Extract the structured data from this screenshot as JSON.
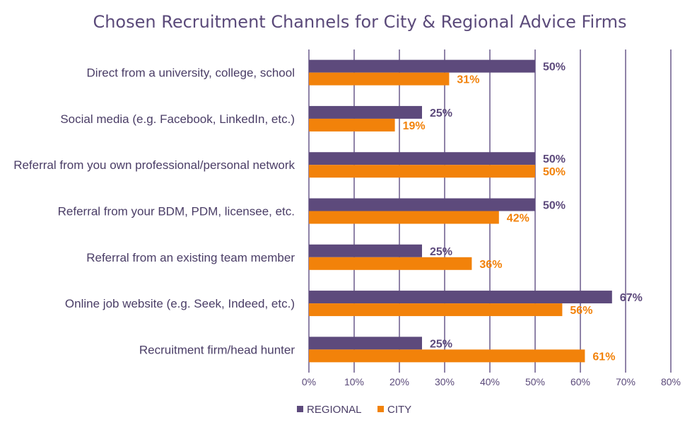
{
  "chart_data": {
    "type": "bar",
    "orientation": "horizontal",
    "title": "Chosen Recruitment Channels for City & Regional Advice Firms",
    "categories": [
      "Direct from a university, college, school",
      "Social media (e.g. Facebook, LinkedIn, etc.)",
      "Referral from you own professional/personal network",
      "Referral from your BDM, PDM, licensee, etc.",
      "Referral from an existing team member",
      "Online job website (e.g. Seek, Indeed, etc.)",
      "Recruitment firm/head hunter"
    ],
    "series": [
      {
        "name": "REGIONAL",
        "color": "#5d4a7c",
        "values": [
          50,
          25,
          50,
          50,
          25,
          67,
          25
        ]
      },
      {
        "name": "CITY",
        "color": "#f2820a",
        "values": [
          31,
          19,
          50,
          42,
          36,
          56,
          61
        ]
      }
    ],
    "xlim": [
      0,
      80
    ],
    "xticks": [
      "0%",
      "10%",
      "20%",
      "30%",
      "40%",
      "50%",
      "60%",
      "70%",
      "80%"
    ],
    "value_suffix": "%",
    "grid": "vertical",
    "legend": "bottom-center"
  }
}
